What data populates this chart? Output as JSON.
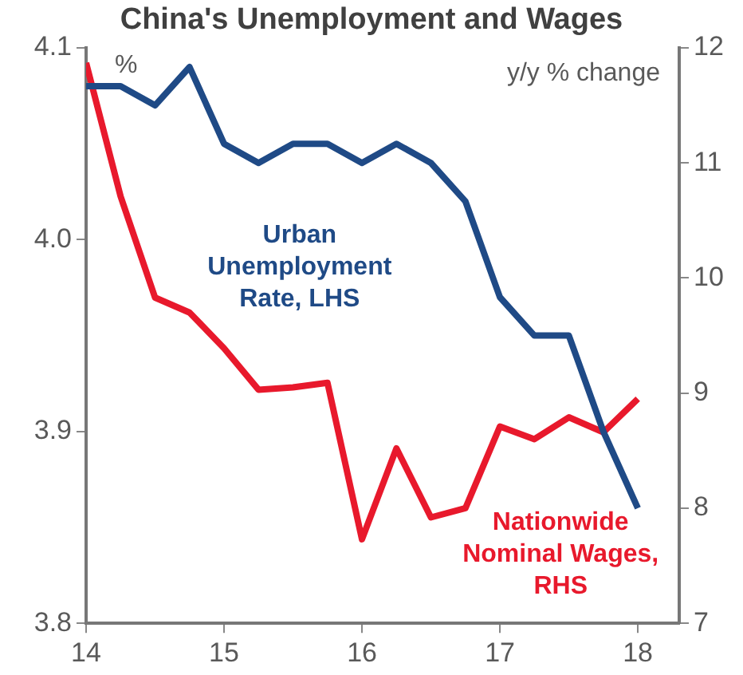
{
  "chart_data": {
    "type": "line",
    "title": "China's Unemployment and Wages",
    "annotations": [
      "%",
      "y/y % change"
    ],
    "x": [
      14,
      14.25,
      14.5,
      14.75,
      15,
      15.25,
      15.5,
      15.75,
      16,
      16.25,
      16.5,
      16.75,
      17,
      17.25,
      17.5,
      17.75,
      18
    ],
    "series": [
      {
        "name": "Urban Unemployment Rate, LHS",
        "color": "#1f4a86",
        "values": [
          4.08,
          4.08,
          4.07,
          4.09,
          4.05,
          4.04,
          4.05,
          4.05,
          4.04,
          4.05,
          4.04,
          4.02,
          3.97,
          3.95,
          3.95,
          3.9,
          3.86
        ]
      },
      {
        "name": "Nationwide Nominal Wages, RHS",
        "color": "#e8192c",
        "axis": "y2",
        "values": [
          11.87,
          10.71,
          9.83,
          9.7,
          9.39,
          9.03,
          9.05,
          9.09,
          7.73,
          8.52,
          7.92,
          8.0,
          8.71,
          8.6,
          8.79,
          8.66,
          8.95
        ]
      }
    ],
    "xlim": [
      14,
      18.3
    ],
    "xticks": [
      14,
      15,
      16,
      17,
      18
    ],
    "ylim": [
      3.8,
      4.1
    ],
    "yticks": [
      3.8,
      3.9,
      {
        "value": 4,
        "label": "4.0"
      },
      4.1
    ],
    "y2lim": [
      7,
      12
    ],
    "y2ticks": [
      7,
      8,
      9,
      10,
      11,
      12
    ],
    "grid": false,
    "legend": false,
    "marker": "none",
    "line_style": "solid"
  }
}
